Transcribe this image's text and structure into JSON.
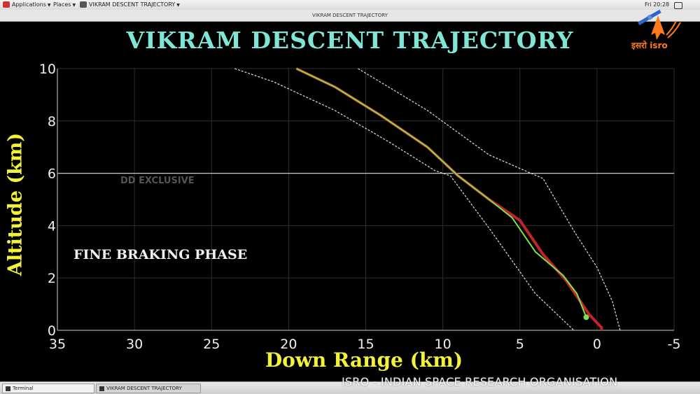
{
  "top_panel": {
    "applications": "Applications",
    "places": "Places",
    "window_title": "VIKRAM DESCENT TRAJECTORY",
    "clock": "Fri 20:28"
  },
  "window": {
    "title": "VIKRAM DESCENT TRAJECTORY"
  },
  "taskbar": {
    "items": [
      "Terminal",
      "VIKRAM DESCENT TRAJECTORY"
    ]
  },
  "watermark": "ISRO - INDIAN SPACE RESEARCH ORGANISATION",
  "logo": {
    "text": "इसरो isro",
    "accent": "#ff7a1a"
  },
  "chart_data": {
    "type": "line",
    "title": "VIKRAM DESCENT TRAJECTORY",
    "xlabel": "Down Range (km)",
    "ylabel": "Altitude (km)",
    "xlim": [
      35,
      -5
    ],
    "ylim": [
      0,
      10
    ],
    "xticks": [
      "35",
      "30",
      "25",
      "20",
      "15",
      "10",
      "5",
      "0",
      "-5"
    ],
    "yticks": [
      "0",
      "2",
      "4",
      "6",
      "8",
      "10"
    ],
    "gridline_y": 6,
    "annotations": [
      "FINE BRAKING PHASE",
      "DD EXCLUSIVE"
    ],
    "colors": {
      "title": "#7fe6d6",
      "axis_labels": "#f2f23a",
      "planned": "#c0242a",
      "actual": "#7ee04a",
      "bounds": "#d0d0d0"
    },
    "series": [
      {
        "role": "planned",
        "points": [
          [
            19.5,
            10
          ],
          [
            17,
            9.3
          ],
          [
            14,
            8.2
          ],
          [
            11,
            7
          ],
          [
            9,
            5.9
          ],
          [
            7,
            5
          ],
          [
            5,
            4.2
          ],
          [
            3.5,
            2.9
          ],
          [
            2,
            1.9
          ],
          [
            0.5,
            0.6
          ],
          [
            -0.3,
            0.1
          ],
          [
            -0.3,
            0
          ]
        ]
      },
      {
        "role": "actual",
        "points": [
          [
            19.5,
            10
          ],
          [
            17,
            9.3
          ],
          [
            14,
            8.2
          ],
          [
            11,
            7
          ],
          [
            9,
            5.9
          ],
          [
            7,
            5
          ],
          [
            5.5,
            4.3
          ],
          [
            4,
            3
          ],
          [
            2.2,
            2.1
          ],
          [
            1.3,
            1.4
          ],
          [
            0.7,
            0.5
          ]
        ]
      },
      {
        "role": "boundary",
        "points": [
          [
            23.5,
            10
          ],
          [
            21,
            9.5
          ],
          [
            17,
            8.4
          ],
          [
            13.5,
            7.2
          ],
          [
            10.5,
            6.1
          ],
          [
            9.5,
            5.9
          ],
          [
            7,
            3.9
          ],
          [
            4,
            1.4
          ],
          [
            1.5,
            0
          ]
        ]
      },
      {
        "role": "boundary",
        "points": [
          [
            15.5,
            10
          ],
          [
            11,
            8.4
          ],
          [
            7,
            6.7
          ],
          [
            3.5,
            5.8
          ],
          [
            1.5,
            3.8
          ],
          [
            0,
            2.4
          ],
          [
            -1,
            1.1
          ],
          [
            -1.5,
            0
          ]
        ]
      }
    ],
    "end_marker": [
      0.7,
      0.5
    ]
  }
}
